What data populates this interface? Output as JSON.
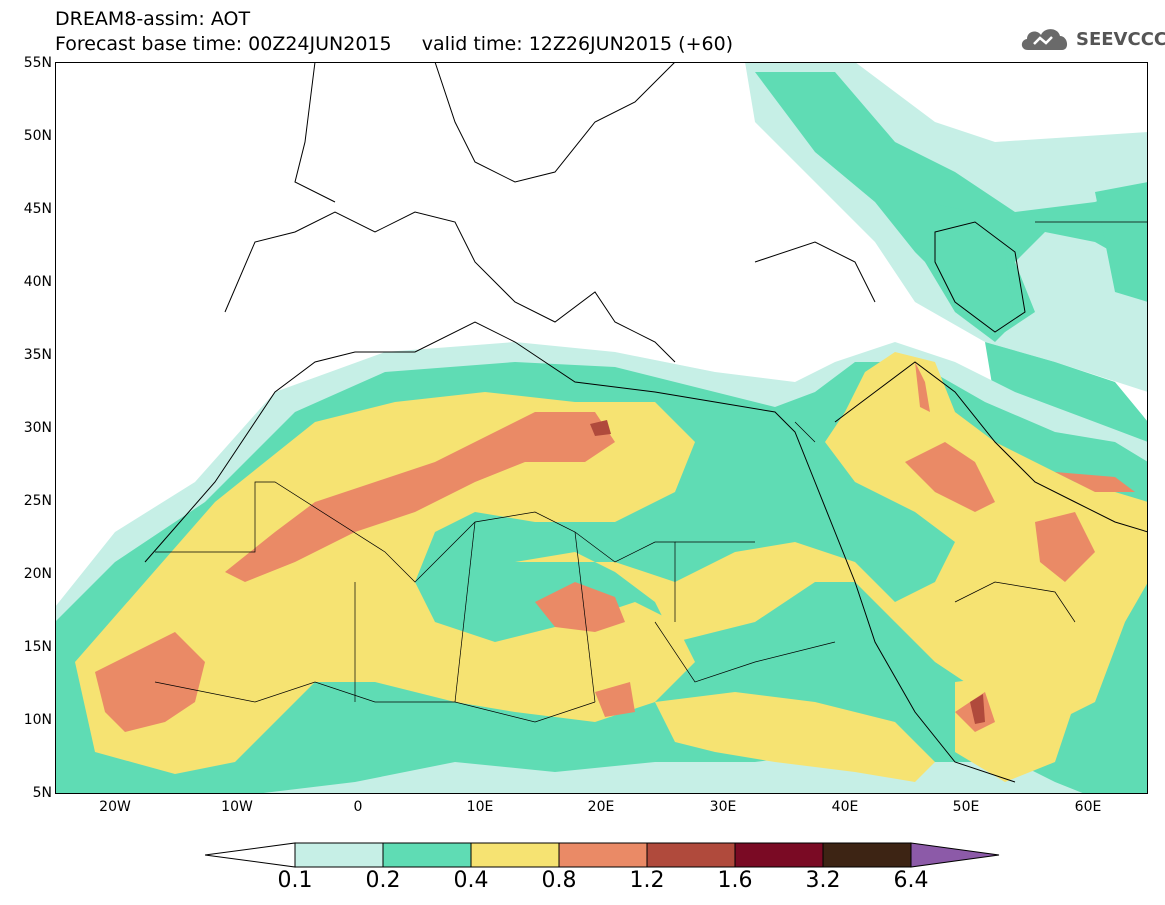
{
  "title": {
    "line1": "DREAM8-assim: AOT",
    "line2": "Forecast base time: 00Z24JUN2015     valid time: 12Z26JUN2015 (+60)"
  },
  "logo": {
    "text": "SEEVCCC",
    "icon": "cloud-icon"
  },
  "map": {
    "lat_labels": [
      "55N",
      "50N",
      "45N",
      "40N",
      "35N",
      "30N",
      "25N",
      "20N",
      "15N",
      "10N",
      "5N"
    ],
    "lon_labels": [
      "20W",
      "10W",
      "0",
      "10E",
      "20E",
      "30E",
      "40E",
      "50E",
      "60E"
    ]
  },
  "colorbar": {
    "labels": [
      "0.1",
      "0.2",
      "0.4",
      "0.8",
      "1.2",
      "1.6",
      "3.2",
      "6.4"
    ],
    "colors": [
      "#ffffff",
      "#c6efe6",
      "#5fdcb4",
      "#f6e372",
      "#ea8a66",
      "#b04a3c",
      "#7a0a24",
      "#3d2414",
      "#8c5aa8"
    ]
  }
}
